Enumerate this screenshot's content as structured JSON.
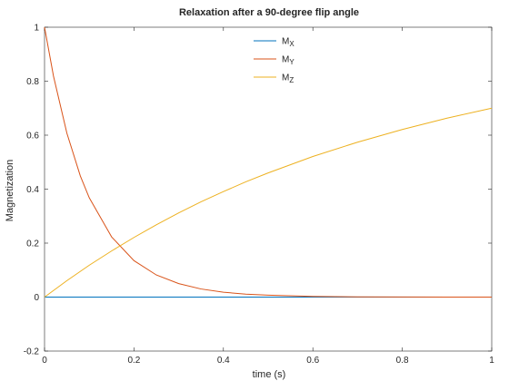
{
  "chart_data": {
    "type": "line",
    "title": "Relaxation after a 90-degree flip angle",
    "xlabel": "time (s)",
    "ylabel": "Magnetization",
    "xlim": [
      0,
      1
    ],
    "ylim": [
      -0.2,
      1
    ],
    "xticks": [
      0,
      0.2,
      0.4,
      0.6,
      0.8,
      1
    ],
    "xtick_labels": [
      "0",
      "0.2",
      "0.4",
      "0.6",
      "0.8",
      "1"
    ],
    "yticks": [
      -0.2,
      0,
      0.2,
      0.4,
      0.6,
      0.8,
      1
    ],
    "ytick_labels": [
      "-0.2",
      "0",
      "0.2",
      "0.4",
      "0.6",
      "0.8",
      "1"
    ],
    "grid": false,
    "legend_position": "top-center",
    "series": [
      {
        "name": "M_X",
        "legend_main": "M",
        "legend_sub": "X",
        "color": "#0072bd",
        "x": [
          0,
          0.1,
          0.2,
          0.3,
          0.4,
          0.5,
          0.6,
          0.7,
          0.8,
          0.9,
          1.0
        ],
        "y": [
          0,
          0,
          0,
          0,
          0,
          0,
          0,
          0,
          0,
          0,
          0
        ]
      },
      {
        "name": "M_Y",
        "legend_main": "M",
        "legend_sub": "Y",
        "color": "#d95319",
        "x": [
          0,
          0.02,
          0.05,
          0.08,
          0.1,
          0.15,
          0.2,
          0.25,
          0.3,
          0.35,
          0.4,
          0.45,
          0.5,
          0.6,
          0.7,
          0.8,
          0.9,
          1.0
        ],
        "y": [
          1.0,
          0.819,
          0.607,
          0.449,
          0.368,
          0.223,
          0.135,
          0.082,
          0.05,
          0.03,
          0.018,
          0.011,
          0.007,
          0.0025,
          0.001,
          0.0003,
          0.0001,
          0.0
        ]
      },
      {
        "name": "M_Z",
        "legend_main": "M",
        "legend_sub": "Z",
        "color": "#edb120",
        "x": [
          0,
          0.05,
          0.1,
          0.15,
          0.2,
          0.25,
          0.3,
          0.35,
          0.4,
          0.45,
          0.5,
          0.6,
          0.7,
          0.8,
          0.9,
          1.0
        ],
        "y": [
          0,
          0.061,
          0.118,
          0.171,
          0.221,
          0.268,
          0.312,
          0.353,
          0.391,
          0.427,
          0.46,
          0.521,
          0.574,
          0.621,
          0.663,
          0.7
        ]
      }
    ]
  }
}
